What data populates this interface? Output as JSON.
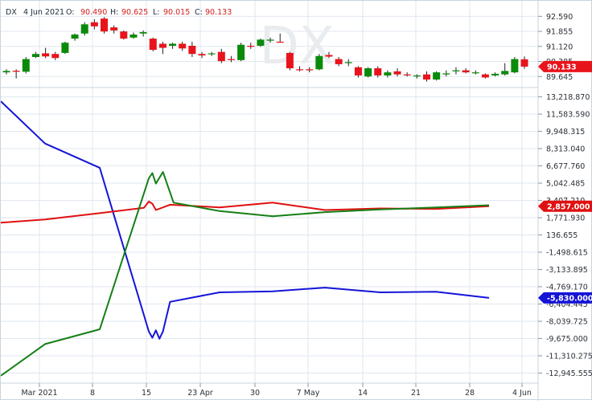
{
  "header": {
    "symbol": "DX",
    "date": "4 Jun 2021",
    "open_label": "O:",
    "open": "90.490",
    "high_label": "H:",
    "high": "90.625",
    "low_label": "L:",
    "low": "90.015",
    "close_label": "C:",
    "close": "90.133"
  },
  "watermark": "DX",
  "colors": {
    "bull": "#0a8a0a",
    "bear": "#e8141c",
    "cot_blue": "#1414d8",
    "cot_red": "#e01010",
    "cot_green": "#157f15",
    "grid": "#dfe7ef"
  },
  "chart_data": [
    {
      "type": "candlestick",
      "title": "DX",
      "ylim": [
        89.0,
        93.0
      ],
      "yticks": [
        "92.590",
        "91.855",
        "91.120",
        "90.385",
        "89.645"
      ],
      "last_value_tag": "90.133",
      "candles": [
        {
          "o": 89.85,
          "h": 90.0,
          "l": 89.75,
          "c": 89.92
        },
        {
          "o": 89.93,
          "h": 90.0,
          "l": 89.55,
          "c": 89.88
        },
        {
          "o": 89.88,
          "h": 90.6,
          "l": 89.8,
          "c": 90.5
        },
        {
          "o": 90.6,
          "h": 90.85,
          "l": 90.55,
          "c": 90.75
        },
        {
          "o": 90.78,
          "h": 91.05,
          "l": 90.55,
          "c": 90.63
        },
        {
          "o": 90.75,
          "h": 90.85,
          "l": 90.45,
          "c": 90.55
        },
        {
          "o": 90.8,
          "h": 91.35,
          "l": 90.75,
          "c": 91.3
        },
        {
          "o": 91.5,
          "h": 91.75,
          "l": 91.4,
          "c": 91.7
        },
        {
          "o": 91.75,
          "h": 92.3,
          "l": 91.65,
          "c": 92.2
        },
        {
          "o": 92.3,
          "h": 92.45,
          "l": 91.95,
          "c": 92.1
        },
        {
          "o": 92.48,
          "h": 92.55,
          "l": 91.75,
          "c": 91.85
        },
        {
          "o": 92.05,
          "h": 92.15,
          "l": 91.75,
          "c": 91.9
        },
        {
          "o": 91.85,
          "h": 91.9,
          "l": 91.45,
          "c": 91.5
        },
        {
          "o": 91.55,
          "h": 91.8,
          "l": 91.5,
          "c": 91.7
        },
        {
          "o": 91.75,
          "h": 91.9,
          "l": 91.6,
          "c": 91.82
        },
        {
          "o": 91.5,
          "h": 91.55,
          "l": 90.88,
          "c": 90.95
        },
        {
          "o": 91.25,
          "h": 91.35,
          "l": 90.75,
          "c": 91.05
        },
        {
          "o": 91.15,
          "h": 91.3,
          "l": 91.0,
          "c": 91.25
        },
        {
          "o": 91.25,
          "h": 91.35,
          "l": 90.9,
          "c": 91.02
        },
        {
          "o": 91.15,
          "h": 91.35,
          "l": 90.6,
          "c": 90.75
        },
        {
          "o": 90.75,
          "h": 90.85,
          "l": 90.55,
          "c": 90.68
        },
        {
          "o": 90.75,
          "h": 90.85,
          "l": 90.65,
          "c": 90.78
        },
        {
          "o": 90.85,
          "h": 91.0,
          "l": 90.3,
          "c": 90.4
        },
        {
          "o": 90.5,
          "h": 90.65,
          "l": 90.35,
          "c": 90.45
        },
        {
          "o": 90.45,
          "h": 91.3,
          "l": 90.4,
          "c": 91.2
        },
        {
          "o": 91.15,
          "h": 91.3,
          "l": 91.0,
          "c": 91.1
        },
        {
          "o": 91.15,
          "h": 91.5,
          "l": 91.1,
          "c": 91.45
        },
        {
          "o": 91.4,
          "h": 91.55,
          "l": 91.3,
          "c": 91.45
        },
        {
          "o": 91.35,
          "h": 91.75,
          "l": 91.3,
          "c": 91.3
        },
        {
          "o": 90.8,
          "h": 90.85,
          "l": 89.95,
          "c": 90.05
        },
        {
          "o": 90.0,
          "h": 90.15,
          "l": 89.9,
          "c": 89.97
        },
        {
          "o": 90.0,
          "h": 90.1,
          "l": 89.85,
          "c": 89.95
        },
        {
          "o": 90.0,
          "h": 90.75,
          "l": 89.95,
          "c": 90.65
        },
        {
          "o": 90.7,
          "h": 90.85,
          "l": 90.55,
          "c": 90.62
        },
        {
          "o": 90.5,
          "h": 90.6,
          "l": 90.15,
          "c": 90.25
        },
        {
          "o": 90.3,
          "h": 90.5,
          "l": 90.15,
          "c": 90.35
        },
        {
          "o": 90.1,
          "h": 90.15,
          "l": 89.6,
          "c": 89.7
        },
        {
          "o": 89.65,
          "h": 90.1,
          "l": 89.6,
          "c": 90.05
        },
        {
          "o": 90.05,
          "h": 90.15,
          "l": 89.6,
          "c": 89.7
        },
        {
          "o": 89.7,
          "h": 89.95,
          "l": 89.6,
          "c": 89.85
        },
        {
          "o": 89.9,
          "h": 90.05,
          "l": 89.65,
          "c": 89.75
        },
        {
          "o": 89.75,
          "h": 89.85,
          "l": 89.65,
          "c": 89.7
        },
        {
          "o": 89.65,
          "h": 89.75,
          "l": 89.55,
          "c": 89.7
        },
        {
          "o": 89.75,
          "h": 89.9,
          "l": 89.4,
          "c": 89.5
        },
        {
          "o": 89.5,
          "h": 89.9,
          "l": 89.45,
          "c": 89.85
        },
        {
          "o": 89.75,
          "h": 89.95,
          "l": 89.65,
          "c": 89.8
        },
        {
          "o": 89.9,
          "h": 90.1,
          "l": 89.75,
          "c": 89.95
        },
        {
          "o": 89.95,
          "h": 90.05,
          "l": 89.8,
          "c": 89.85
        },
        {
          "o": 89.85,
          "h": 89.95,
          "l": 89.75,
          "c": 89.85
        },
        {
          "o": 89.75,
          "h": 89.8,
          "l": 89.55,
          "c": 89.6
        },
        {
          "o": 89.7,
          "h": 89.85,
          "l": 89.65,
          "c": 89.78
        },
        {
          "o": 89.75,
          "h": 90.3,
          "l": 89.7,
          "c": 89.92
        },
        {
          "o": 89.85,
          "h": 90.6,
          "l": 89.8,
          "c": 90.5
        },
        {
          "o": 90.49,
          "h": 90.63,
          "l": 90.02,
          "c": 90.13
        }
      ]
    },
    {
      "type": "line",
      "title": "",
      "ylim": [
        -13900,
        14100
      ],
      "yticks": [
        "13,218.870",
        "11,583.590",
        "9,948.315",
        "8,313.040",
        "6,677.760",
        "5,042.485",
        "3,407.210",
        "1,771.930",
        "136.655",
        "-1,498.615",
        "-3,133.895",
        "-4,769.170",
        "-6,404.445",
        "-8,039.725",
        "-9,675.000",
        "-11,310.275",
        "-12,945.555"
      ],
      "x_labels": [
        "Mar 2021",
        "8",
        "15",
        "23 Apr",
        "30",
        "7 May",
        "14",
        "21",
        "28",
        "4 Jun"
      ],
      "series": [
        {
          "color": "#1414d8",
          "last_value_tag": "-5,830.000",
          "points": [
            [
              0,
              12800
            ],
            [
              1,
              8800
            ],
            [
              2,
              6500
            ],
            [
              3,
              -9000
            ],
            [
              3.05,
              -9600
            ],
            [
              3.1,
              -8900
            ],
            [
              3.15,
              -9700
            ],
            [
              3.2,
              -9000
            ],
            [
              3.3,
              -6200
            ],
            [
              4,
              -5300
            ],
            [
              5,
              -5200
            ],
            [
              6,
              -4850
            ],
            [
              7,
              -5300
            ],
            [
              8,
              -5250
            ],
            [
              9,
              -5830
            ]
          ]
        },
        {
          "color": "#e01010",
          "last_value_tag": "2,857.000",
          "points": [
            [
              0,
              1300
            ],
            [
              1,
              1600
            ],
            [
              2,
              2200
            ],
            [
              2.9,
              2700
            ],
            [
              3.0,
              3300
            ],
            [
              3.05,
              3100
            ],
            [
              3.1,
              2500
            ],
            [
              3.3,
              3000
            ],
            [
              4,
              2750
            ],
            [
              5,
              3200
            ],
            [
              6,
              2500
            ],
            [
              7,
              2650
            ],
            [
              8,
              2600
            ],
            [
              9,
              2857
            ]
          ]
        },
        {
          "color": "#157f15",
          "last_value_tag": "",
          "points": [
            [
              0,
              -13200
            ],
            [
              1,
              -10200
            ],
            [
              2,
              -8800
            ],
            [
              3,
              5500
            ],
            [
              3.05,
              6000
            ],
            [
              3.1,
              5000
            ],
            [
              3.2,
              6100
            ],
            [
              3.35,
              3200
            ],
            [
              4,
              2400
            ],
            [
              5,
              1900
            ],
            [
              6,
              2300
            ],
            [
              7,
              2550
            ],
            [
              8,
              2750
            ],
            [
              9,
              2950
            ]
          ]
        }
      ]
    }
  ]
}
